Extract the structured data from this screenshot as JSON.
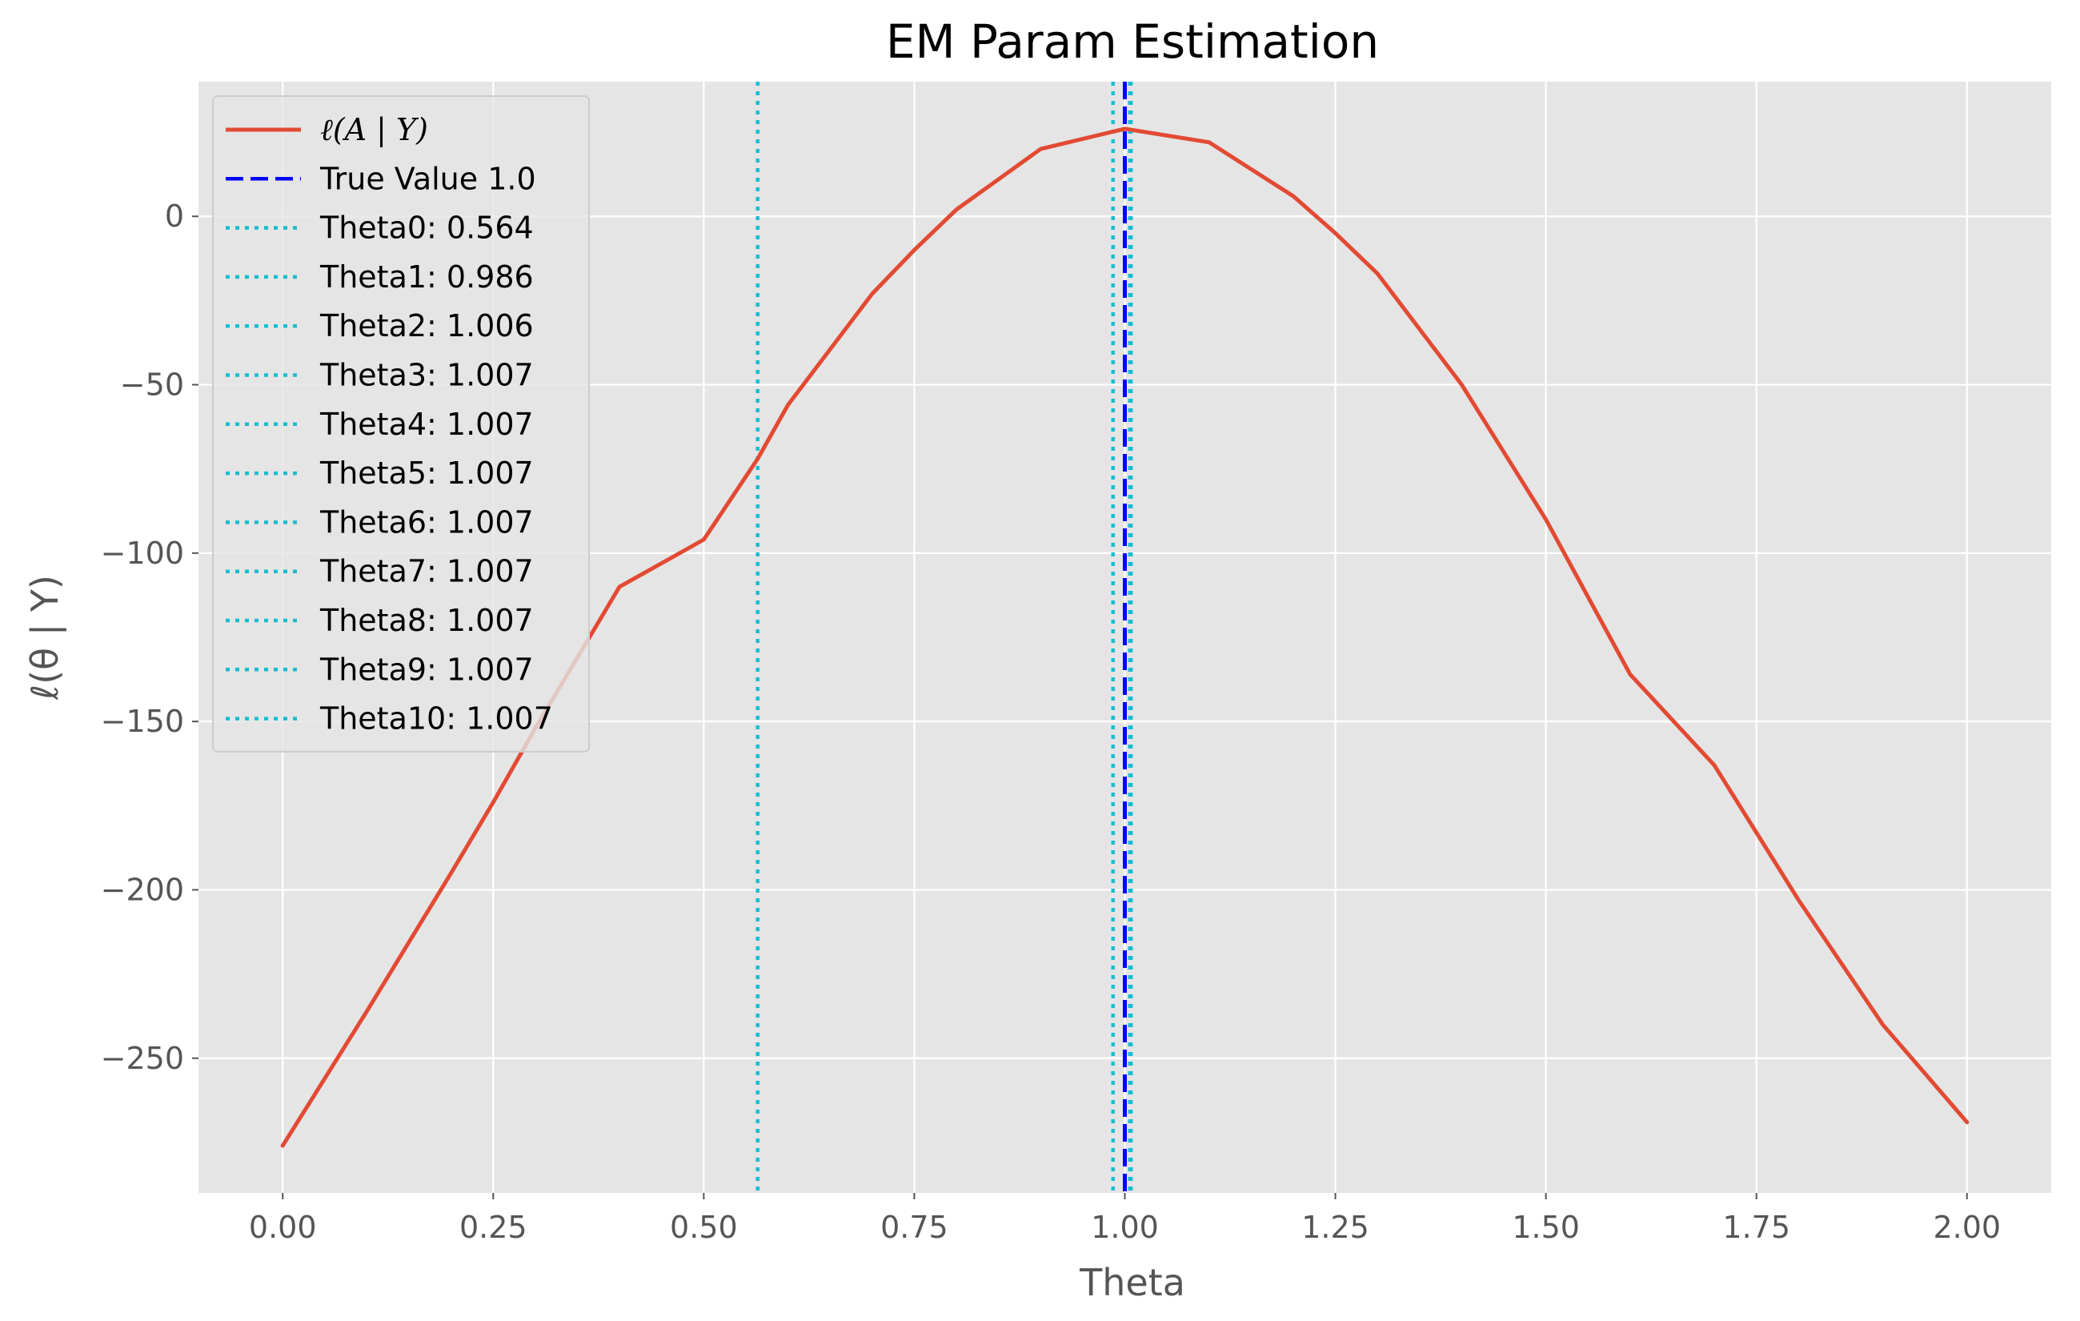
{
  "chart_data": {
    "type": "line",
    "title": "EM Param Estimation",
    "xlabel": "Theta",
    "ylabel": "ℓ(θ | Y)",
    "xlim": [
      -0.1,
      2.1
    ],
    "ylim": [
      -290,
      40
    ],
    "x_ticks": [
      0.0,
      0.25,
      0.5,
      0.75,
      1.0,
      1.25,
      1.5,
      1.75,
      2.0
    ],
    "x_tick_labels": [
      "0.00",
      "0.25",
      "0.50",
      "0.75",
      "1.00",
      "1.25",
      "1.50",
      "1.75",
      "2.00"
    ],
    "y_ticks": [
      0,
      -50,
      -100,
      -150,
      -200,
      -250
    ],
    "y_tick_labels": [
      "0",
      "−50",
      "−100",
      "−150",
      "−200",
      "−250"
    ],
    "grid": true,
    "legend_position": "top-left",
    "series": [
      {
        "name": "ℓ(A | Y)",
        "style": "solid",
        "color": "#E24A33",
        "x": [
          0.0,
          0.1,
          0.2,
          0.25,
          0.3,
          0.4,
          0.5,
          0.564,
          0.6,
          0.7,
          0.75,
          0.8,
          0.9,
          1.0,
          1.1,
          1.2,
          1.25,
          1.3,
          1.4,
          1.5,
          1.6,
          1.7,
          1.75,
          1.8,
          1.9,
          2.0
        ],
        "y": [
          -276,
          -236,
          -195,
          -174,
          -152,
          -110,
          -96,
          -72,
          -56,
          -23,
          -10,
          2,
          20,
          26,
          22,
          6,
          -5,
          -17,
          -50,
          -90,
          -136,
          -163,
          -183,
          -203,
          -240,
          -269
        ]
      }
    ],
    "vlines": [
      {
        "name": "True Value 1.0",
        "x": 1.0,
        "style": "dashed",
        "color": "#0000FF"
      },
      {
        "name": "Theta0: 0.564",
        "x": 0.564,
        "style": "dotted",
        "color": "#17BECF"
      },
      {
        "name": "Theta1: 0.986",
        "x": 0.986,
        "style": "dotted",
        "color": "#17BECF"
      },
      {
        "name": "Theta2: 1.006",
        "x": 1.006,
        "style": "dotted",
        "color": "#17BECF"
      },
      {
        "name": "Theta3: 1.007",
        "x": 1.007,
        "style": "dotted",
        "color": "#17BECF"
      },
      {
        "name": "Theta4: 1.007",
        "x": 1.007,
        "style": "dotted",
        "color": "#17BECF"
      },
      {
        "name": "Theta5: 1.007",
        "x": 1.007,
        "style": "dotted",
        "color": "#17BECF"
      },
      {
        "name": "Theta6: 1.007",
        "x": 1.007,
        "style": "dotted",
        "color": "#17BECF"
      },
      {
        "name": "Theta7: 1.007",
        "x": 1.007,
        "style": "dotted",
        "color": "#17BECF"
      },
      {
        "name": "Theta8: 1.007",
        "x": 1.007,
        "style": "dotted",
        "color": "#17BECF"
      },
      {
        "name": "Theta9: 1.007",
        "x": 1.007,
        "style": "dotted",
        "color": "#17BECF"
      },
      {
        "name": "Theta10: 1.007",
        "x": 1.007,
        "style": "dotted",
        "color": "#17BECF"
      }
    ],
    "colors": {
      "plot_background": "#E5E5E5",
      "grid": "#FFFFFF",
      "curve": "#E24A33",
      "true_value": "#0000FF",
      "theta": "#17BECF"
    }
  }
}
